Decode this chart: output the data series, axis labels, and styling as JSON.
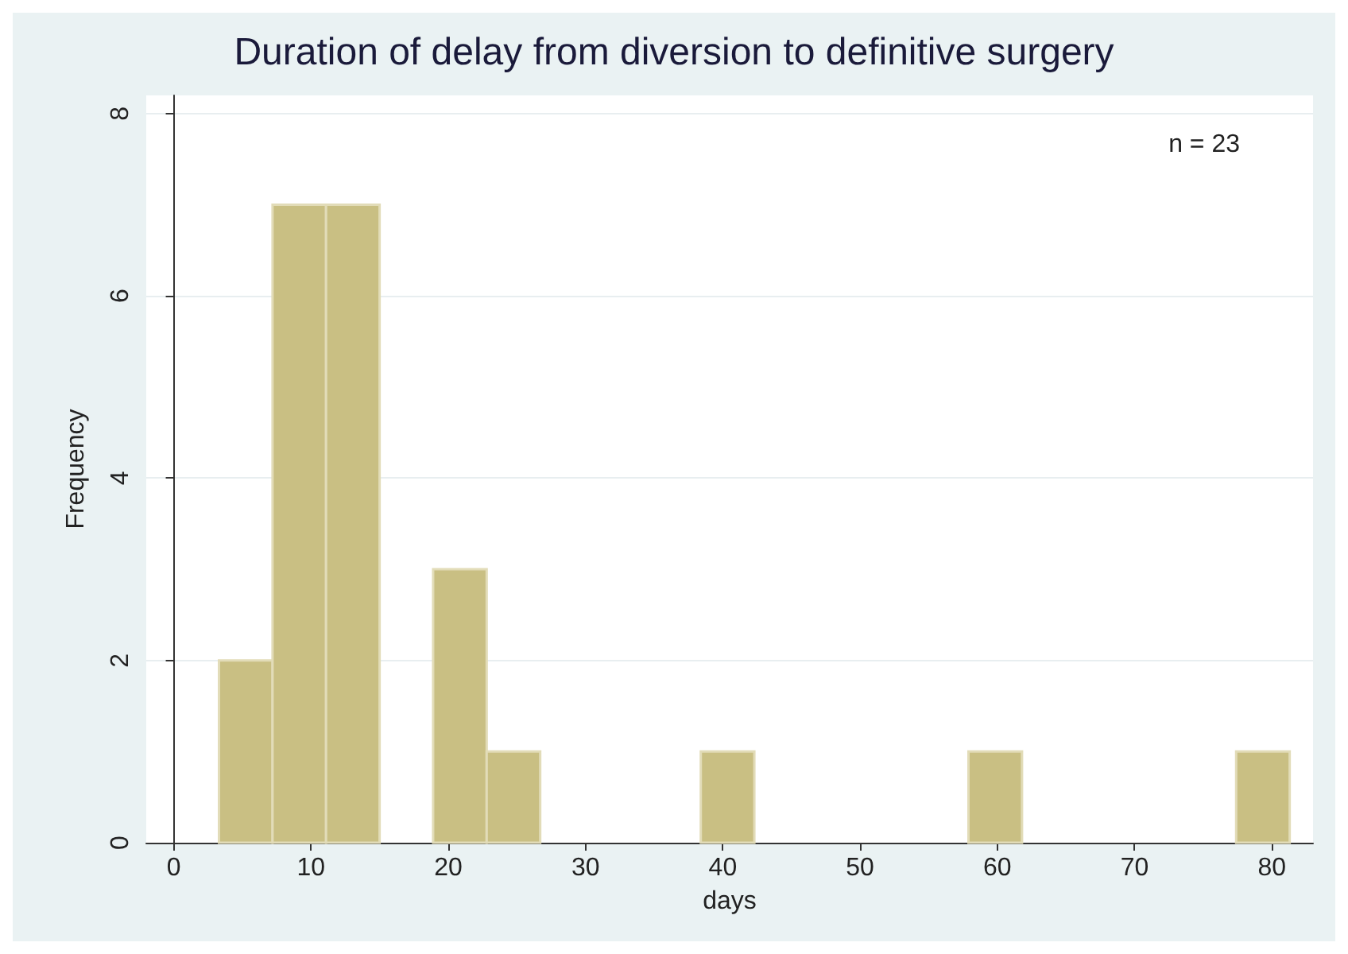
{
  "chart_data": {
    "type": "histogram",
    "title": "Duration of delay from diversion to definitive surgery",
    "xlabel": "days",
    "ylabel": "Frequency",
    "bins": [
      3.3,
      7.2,
      11.1,
      15,
      18.9,
      22.8,
      26.7,
      30.6,
      34.5,
      38.4,
      42.3,
      46.2,
      50.1,
      54,
      57.9,
      61.8,
      65.7,
      69.6,
      73.5,
      77.4,
      81.3
    ],
    "values": [
      2,
      7,
      7,
      0,
      3,
      1,
      0,
      0,
      0,
      1,
      0,
      0,
      0,
      0,
      1,
      0,
      0,
      0,
      0,
      1
    ],
    "color": "#c9bf83",
    "xlim": [
      -2,
      83
    ],
    "xticks": [
      0,
      10,
      20,
      30,
      40,
      50,
      60,
      70,
      80
    ],
    "ylim": [
      0,
      8.2
    ],
    "yticks": [
      0,
      2,
      4,
      6,
      8
    ],
    "grid": "y",
    "annotations": [
      "n = 23"
    ]
  }
}
